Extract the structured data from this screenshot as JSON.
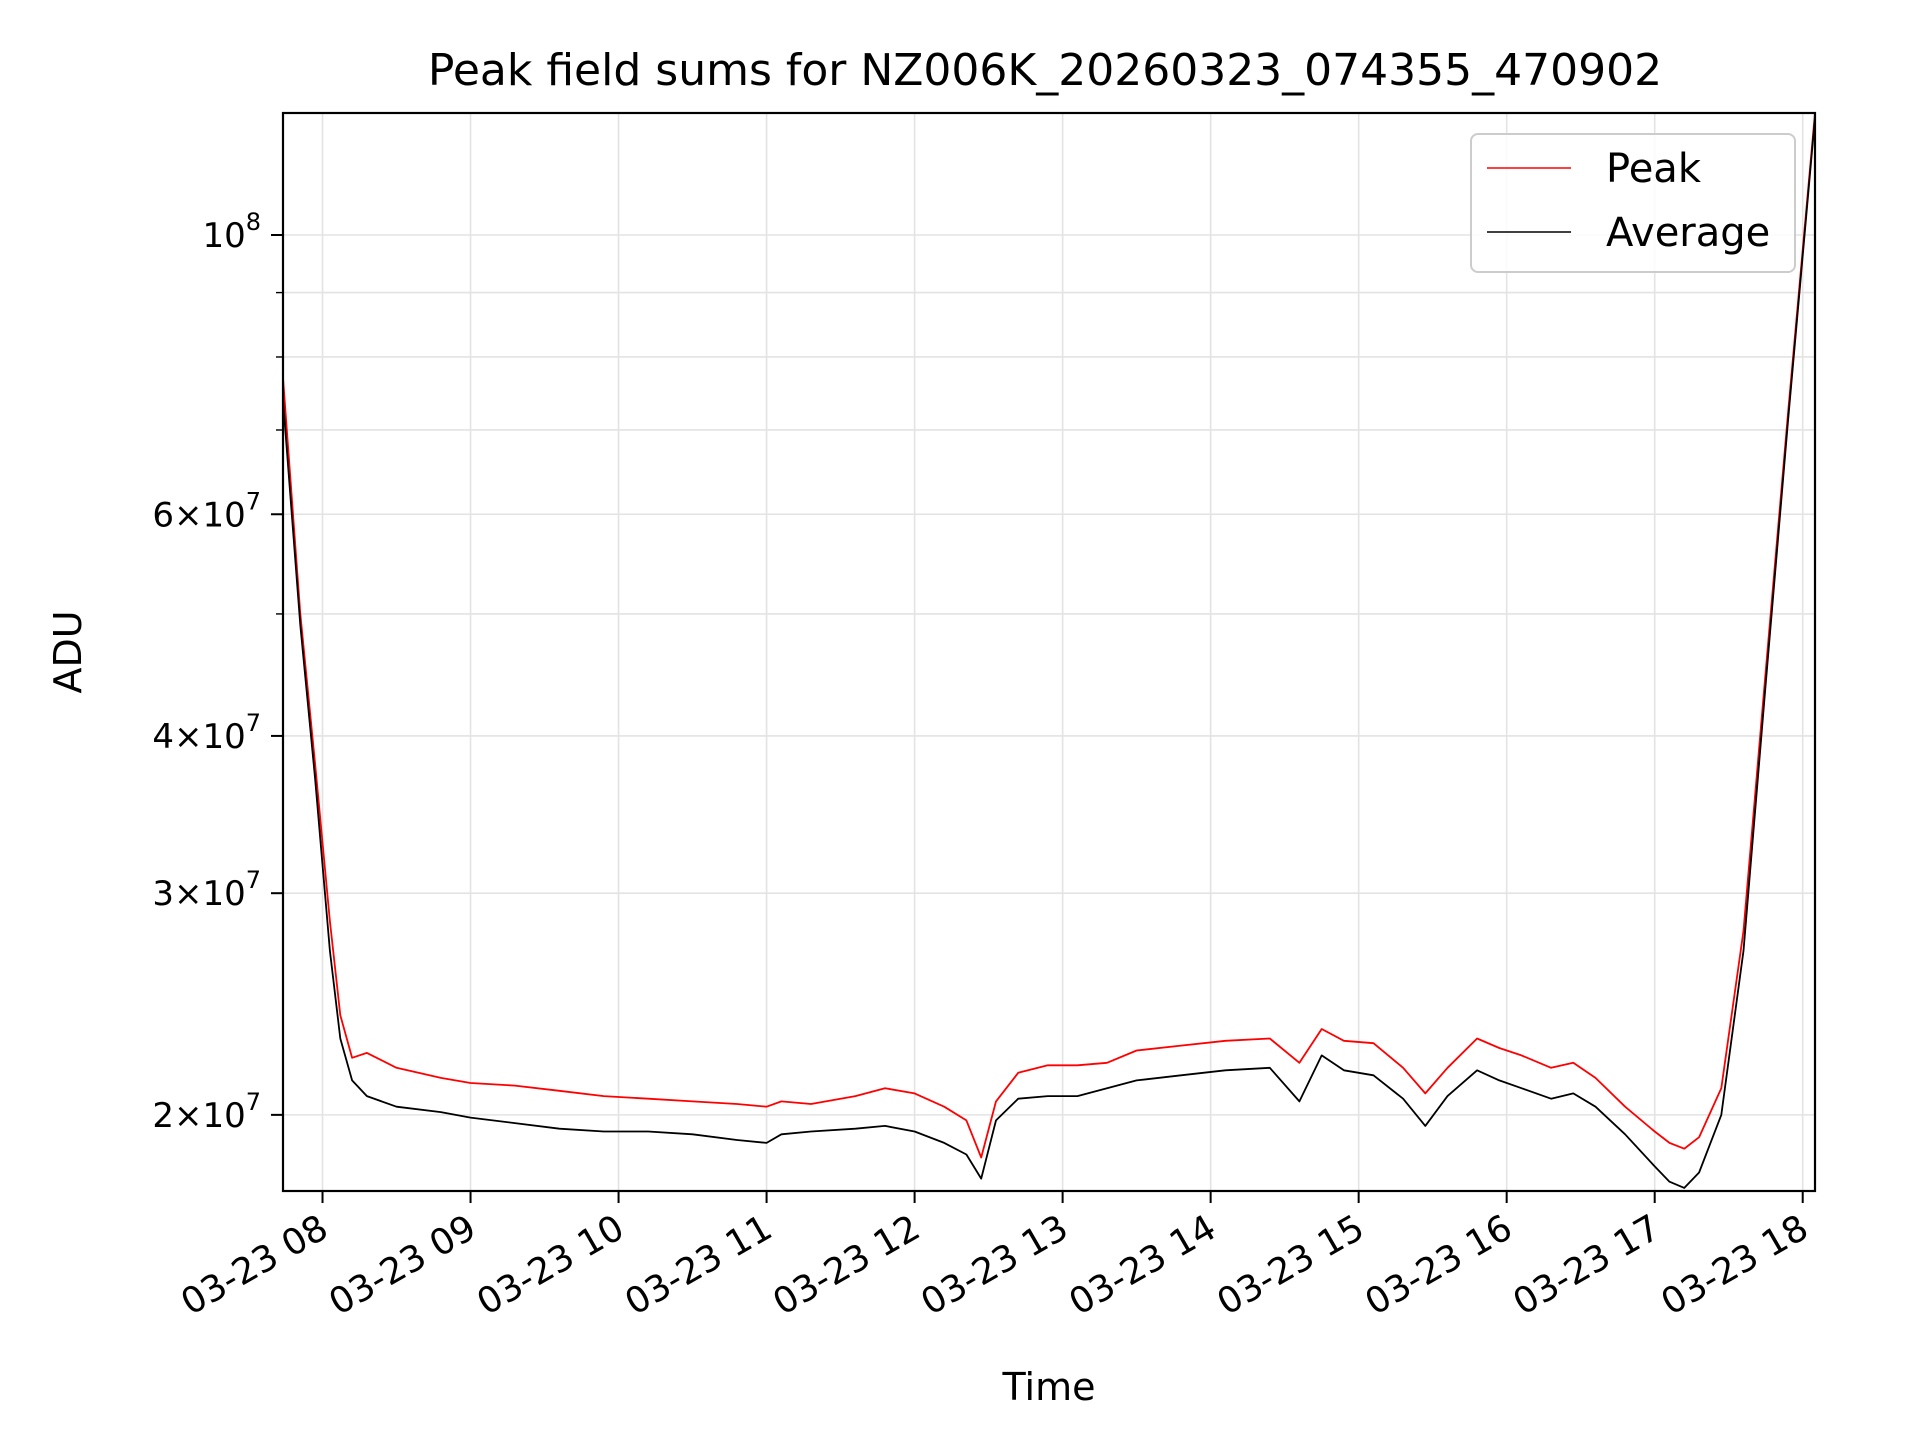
{
  "chart_data": {
    "type": "line",
    "title": "Peak field sums for NZ006K_20260323_074355_470902",
    "xlabel": "Time",
    "ylabel": "ADU",
    "yscale": "log",
    "ylim": [
      17400000,
      125000000
    ],
    "xlim_hours": [
      7.733,
      18.083
    ],
    "grid": true,
    "legend_position": "upper right",
    "x_ticks": [
      {
        "hour": 8,
        "label": "03-23 08"
      },
      {
        "hour": 9,
        "label": "03-23 09"
      },
      {
        "hour": 10,
        "label": "03-23 10"
      },
      {
        "hour": 11,
        "label": "03-23 11"
      },
      {
        "hour": 12,
        "label": "03-23 12"
      },
      {
        "hour": 13,
        "label": "03-23 13"
      },
      {
        "hour": 14,
        "label": "03-23 14"
      },
      {
        "hour": 15,
        "label": "03-23 15"
      },
      {
        "hour": 16,
        "label": "03-23 16"
      },
      {
        "hour": 17,
        "label": "03-23 17"
      },
      {
        "hour": 18,
        "label": "03-23 18"
      }
    ],
    "y_ticks": [
      {
        "value": 20000000,
        "base": "2×10",
        "exp": "7"
      },
      {
        "value": 30000000,
        "base": "3×10",
        "exp": "7"
      },
      {
        "value": 40000000,
        "base": "4×10",
        "exp": "7"
      },
      {
        "value": 60000000,
        "base": "6×10",
        "exp": "7"
      },
      {
        "value": 100000000,
        "base": "10",
        "exp": "8"
      }
    ],
    "y_minor_ticks": [
      50000000,
      70000000,
      80000000,
      90000000
    ],
    "series": [
      {
        "name": "Peak",
        "color": "#ff0000",
        "x_hours": [
          7.733,
          7.85,
          7.95,
          8.05,
          8.12,
          8.2,
          8.3,
          8.5,
          8.8,
          9.0,
          9.3,
          9.6,
          9.9,
          10.2,
          10.5,
          10.8,
          11.0,
          11.1,
          11.3,
          11.6,
          11.8,
          12.0,
          12.2,
          12.35,
          12.45,
          12.55,
          12.7,
          12.9,
          13.1,
          13.3,
          13.5,
          13.8,
          14.1,
          14.4,
          14.6,
          14.75,
          14.9,
          15.1,
          15.3,
          15.45,
          15.6,
          15.8,
          15.95,
          16.1,
          16.3,
          16.45,
          16.6,
          16.8,
          17.0,
          17.1,
          17.2,
          17.3,
          17.45,
          17.6,
          17.75,
          17.9,
          18.083
        ],
        "values": [
          77000000,
          50000000,
          38000000,
          28500000,
          24000000,
          22200000,
          22400000,
          21800000,
          21400000,
          21200000,
          21100000,
          20900000,
          20700000,
          20600000,
          20500000,
          20400000,
          20300000,
          20500000,
          20400000,
          20700000,
          21000000,
          20800000,
          20300000,
          19800000,
          18500000,
          20500000,
          21600000,
          21900000,
          21900000,
          22000000,
          22500000,
          22700000,
          22900000,
          23000000,
          22000000,
          23400000,
          22900000,
          22800000,
          21800000,
          20800000,
          21800000,
          23000000,
          22600000,
          22300000,
          21800000,
          22000000,
          21400000,
          20300000,
          19400000,
          19000000,
          18800000,
          19200000,
          21000000,
          28000000,
          45000000,
          72000000,
          125000000
        ]
      },
      {
        "name": "Average",
        "color": "#000000",
        "x_hours": [
          7.733,
          7.85,
          7.95,
          8.05,
          8.12,
          8.2,
          8.3,
          8.5,
          8.8,
          9.0,
          9.3,
          9.6,
          9.9,
          10.2,
          10.5,
          10.8,
          11.0,
          11.1,
          11.3,
          11.6,
          11.8,
          12.0,
          12.2,
          12.35,
          12.45,
          12.55,
          12.7,
          12.9,
          13.1,
          13.3,
          13.5,
          13.8,
          14.1,
          14.4,
          14.6,
          14.75,
          14.9,
          15.1,
          15.3,
          15.45,
          15.6,
          15.8,
          15.95,
          16.1,
          16.3,
          16.45,
          16.6,
          16.8,
          17.0,
          17.1,
          17.2,
          17.3,
          17.45,
          17.6,
          17.75,
          17.9,
          18.083
        ],
        "values": [
          74000000,
          49000000,
          37000000,
          27000000,
          23000000,
          21300000,
          20700000,
          20300000,
          20100000,
          19900000,
          19700000,
          19500000,
          19400000,
          19400000,
          19300000,
          19100000,
          19000000,
          19300000,
          19400000,
          19500000,
          19600000,
          19400000,
          19000000,
          18600000,
          17800000,
          19800000,
          20600000,
          20700000,
          20700000,
          21000000,
          21300000,
          21500000,
          21700000,
          21800000,
          20500000,
          22300000,
          21700000,
          21500000,
          20600000,
          19600000,
          20700000,
          21700000,
          21300000,
          21000000,
          20600000,
          20800000,
          20300000,
          19300000,
          18200000,
          17700000,
          17500000,
          18000000,
          20000000,
          27000000,
          44000000,
          71000000,
          124000000
        ]
      }
    ]
  }
}
